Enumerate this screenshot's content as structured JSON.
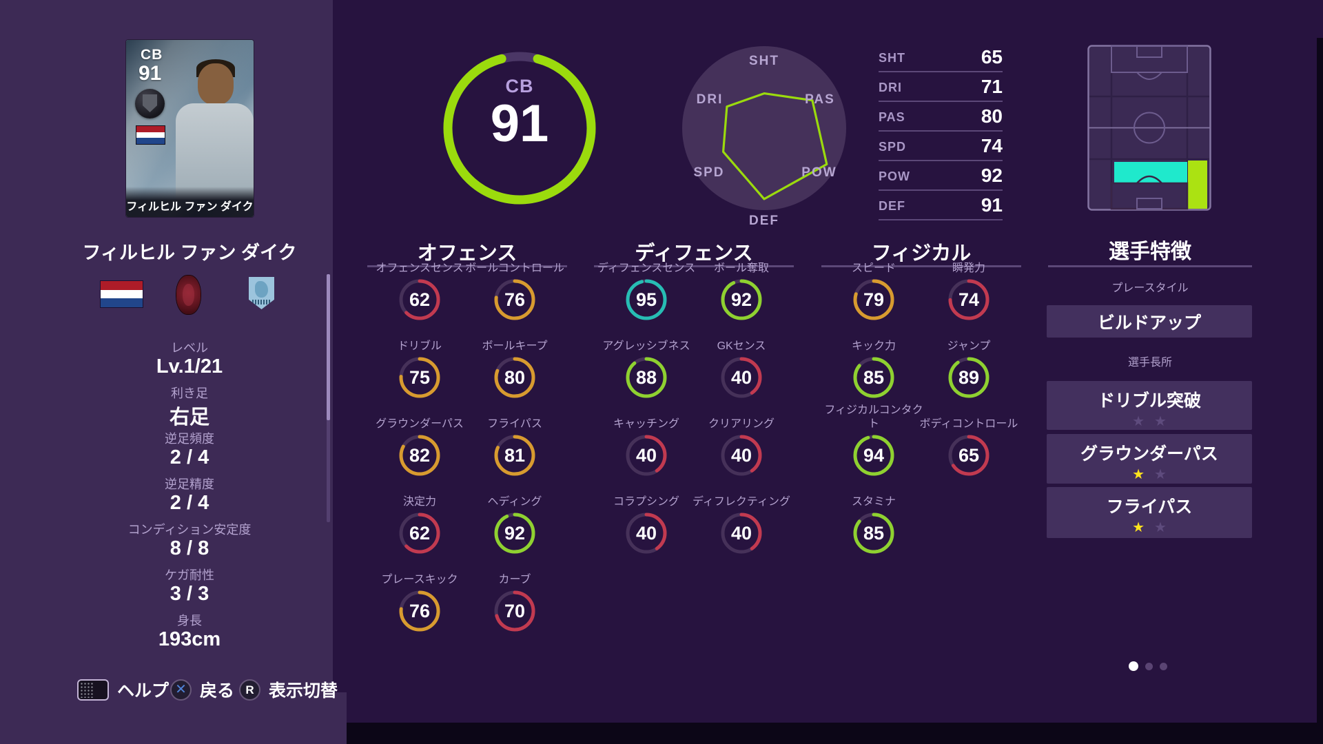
{
  "player": {
    "name": "フィルヒル ファン ダイク",
    "position": "CB",
    "rating": 91,
    "card": {
      "position": "CB",
      "rating": "91",
      "name": "フィルヒル ファン ダイク"
    },
    "info": [
      {
        "label": "レベル",
        "value": "Lv.1/21"
      },
      {
        "label": "利き足",
        "value": "右足"
      },
      {
        "label": "逆足頻度",
        "value": "2 / 4"
      },
      {
        "label": "逆足精度",
        "value": "2 / 4"
      },
      {
        "label": "コンディション安定度",
        "value": "8 / 8"
      },
      {
        "label": "ケガ耐性",
        "value": "3 / 3"
      },
      {
        "label": "身長",
        "value": "193cm"
      }
    ]
  },
  "summary_stats": [
    {
      "label": "SHT",
      "value": 65
    },
    {
      "label": "DRI",
      "value": 71
    },
    {
      "label": "PAS",
      "value": 80
    },
    {
      "label": "SPD",
      "value": 74
    },
    {
      "label": "POW",
      "value": 92
    },
    {
      "label": "DEF",
      "value": 91
    }
  ],
  "chart_data": [
    {
      "type": "radar",
      "categories": [
        "SHT",
        "PAS",
        "POW",
        "DEF",
        "SPD",
        "DRI"
      ],
      "values": [
        65,
        80,
        92,
        91,
        74,
        71
      ],
      "scale_min": 40,
      "scale_max": 99,
      "grid": false
    },
    {
      "type": "donut",
      "label": "CB",
      "value": 91,
      "max": 99
    }
  ],
  "sections": [
    {
      "title": "オフェンス",
      "stats": [
        {
          "label": "オフェンスセンス",
          "value": 62
        },
        {
          "label": "ボールコントロール",
          "value": 76
        },
        {
          "label": "ドリブル",
          "value": 75
        },
        {
          "label": "ボールキープ",
          "value": 80
        },
        {
          "label": "グラウンダーパス",
          "value": 82
        },
        {
          "label": "フライパス",
          "value": 81
        },
        {
          "label": "決定力",
          "value": 62
        },
        {
          "label": "ヘディング",
          "value": 92
        },
        {
          "label": "プレースキック",
          "value": 76
        },
        {
          "label": "カーブ",
          "value": 70
        }
      ]
    },
    {
      "title": "ディフェンス",
      "stats": [
        {
          "label": "ディフェンスセンス",
          "value": 95
        },
        {
          "label": "ボール奪取",
          "value": 92
        },
        {
          "label": "アグレッシブネス",
          "value": 88
        },
        {
          "label": "GKセンス",
          "value": 40
        },
        {
          "label": "キャッチング",
          "value": 40
        },
        {
          "label": "クリアリング",
          "value": 40
        },
        {
          "label": "コラプシング",
          "value": 40
        },
        {
          "label": "ディフレクティング",
          "value": 40
        }
      ]
    },
    {
      "title": "フィジカル",
      "stats": [
        {
          "label": "スピード",
          "value": 79
        },
        {
          "label": "瞬発力",
          "value": 74
        },
        {
          "label": "キック力",
          "value": 85
        },
        {
          "label": "ジャンプ",
          "value": 89
        },
        {
          "label": "フィジカルコンタクト",
          "value": 94
        },
        {
          "label": "ボディコントロール",
          "value": 65
        },
        {
          "label": "スタミナ",
          "value": 85
        }
      ]
    }
  ],
  "traits": {
    "title": "選手特徴",
    "playstyle_label": "プレースタイル",
    "playstyle": "ビルドアップ",
    "skills_label": "選手長所",
    "skills": [
      {
        "name": "ドリブル突破",
        "stars": 0,
        "max_stars": 2
      },
      {
        "name": "グラウンダーパス",
        "stars": 1,
        "max_stars": 2
      },
      {
        "name": "フライパス",
        "stars": 1,
        "max_stars": 2
      }
    ]
  },
  "pagination": {
    "total": 3,
    "active": 0
  },
  "help_bar": [
    {
      "icon": "touchpad-button",
      "label": "ヘルプ"
    },
    {
      "icon": "cross-button",
      "label": "戻る"
    },
    {
      "icon": "r-button",
      "label": "表示切替"
    }
  ],
  "colors": {
    "ring_red": "#c23a50",
    "ring_orange": "#d89b2f",
    "ring_green": "#8fd130",
    "ring_teal": "#27bdb4",
    "accent_green": "#9bdb0d",
    "ring_track": "#463159",
    "position_cyan": "#1fe9cc",
    "position_green": "#abe212",
    "star_yellow": "#ffe41e",
    "star_dim": "#5e4b7d"
  }
}
